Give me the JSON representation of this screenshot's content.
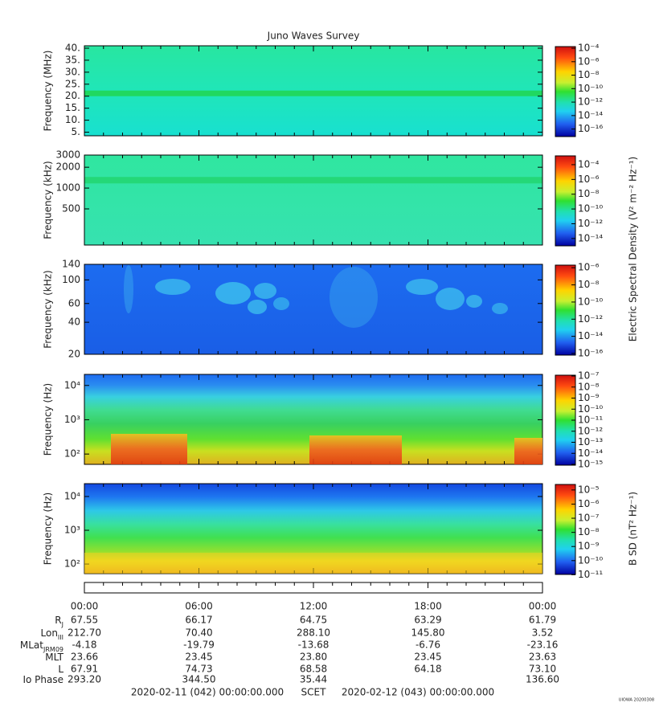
{
  "title": "Juno Waves Survey",
  "chart_data": [
    {
      "type": "spectrogram",
      "ylabel": "Frequency (MHz)",
      "log_y": false,
      "ylim": [
        3.5,
        41
      ],
      "yticks": [
        {
          "value": 5,
          "label": "5."
        },
        {
          "value": 10,
          "label": "10."
        },
        {
          "value": 15,
          "label": "15."
        },
        {
          "value": 20,
          "label": "20."
        },
        {
          "value": 25,
          "label": "25."
        },
        {
          "value": 30,
          "label": "30."
        },
        {
          "value": 35,
          "label": "35."
        },
        {
          "value": 40,
          "label": "40."
        }
      ],
      "clim": [
        1e-17,
        0.00023
      ],
      "cticks": [
        {
          "value": 0.0001,
          "label": "10⁻⁴"
        },
        {
          "value": 1e-06,
          "label": "10⁻⁶"
        },
        {
          "value": 1e-08,
          "label": "10⁻⁸"
        },
        {
          "value": 1e-10,
          "label": "10⁻¹⁰"
        },
        {
          "value": 1e-12,
          "label": "10⁻¹²"
        },
        {
          "value": 1e-14,
          "label": "10⁻¹⁴"
        },
        {
          "value": 1e-16,
          "label": "10⁻¹⁶"
        }
      ]
    },
    {
      "type": "spectrogram",
      "ylabel": "Frequency (kHz)",
      "log_y": true,
      "ylim": [
        150,
        3000
      ],
      "yticks": [
        500,
        1000,
        2000,
        3000
      ],
      "clim": [
        1.3e-15,
        0.002
      ],
      "cticks": [
        {
          "value": 0.0001,
          "label": "10⁻⁴"
        },
        {
          "value": 1e-06,
          "label": "10⁻⁶"
        },
        {
          "value": 1e-08,
          "label": "10⁻⁸"
        },
        {
          "value": 1e-10,
          "label": "10⁻¹⁰"
        },
        {
          "value": 1e-12,
          "label": "10⁻¹²"
        },
        {
          "value": 1e-14,
          "label": "10⁻¹⁴"
        }
      ],
      "colorbar_label": "Electric Spectral Density (V² m⁻² Hz⁻¹)"
    },
    {
      "type": "spectrogram",
      "ylabel": "Frequency (kHz)",
      "log_y": true,
      "ylim": [
        20,
        140
      ],
      "yticks": [
        20,
        40,
        60,
        100,
        140
      ],
      "clim": [
        8e-17,
        2.5e-06
      ],
      "cticks": [
        {
          "value": 1e-06,
          "label": "10⁻⁶"
        },
        {
          "value": 1e-08,
          "label": "10⁻⁸"
        },
        {
          "value": 1e-10,
          "label": "10⁻¹⁰"
        },
        {
          "value": 1e-12,
          "label": "10⁻¹²"
        },
        {
          "value": 1e-14,
          "label": "10⁻¹⁴"
        },
        {
          "value": 1e-16,
          "label": "10⁻¹⁶"
        }
      ]
    },
    {
      "type": "spectrogram",
      "ylabel": "Frequency (Hz)",
      "log_y": true,
      "ylim": [
        50,
        21000
      ],
      "yticks": [
        {
          "value": 100,
          "label": "10²"
        },
        {
          "value": 1000,
          "label": "10³"
        },
        {
          "value": 10000,
          "label": "10⁴"
        }
      ],
      "clim": [
        1e-15,
        1.4e-07
      ],
      "cticks": [
        {
          "value": 1e-07,
          "label": "10⁻⁷"
        },
        {
          "value": 1e-08,
          "label": "10⁻⁸"
        },
        {
          "value": 1e-09,
          "label": "10⁻⁹"
        },
        {
          "value": 1e-10,
          "label": "10⁻¹⁰"
        },
        {
          "value": 1e-11,
          "label": "10⁻¹¹"
        },
        {
          "value": 1e-12,
          "label": "10⁻¹²"
        },
        {
          "value": 1e-13,
          "label": "10⁻¹³"
        },
        {
          "value": 1e-14,
          "label": "10⁻¹⁴"
        },
        {
          "value": 1e-15,
          "label": "10⁻¹⁵"
        }
      ]
    },
    {
      "type": "spectrogram",
      "ylabel": "Frequency (Hz)",
      "log_y": true,
      "ylim": [
        52,
        24000
      ],
      "yticks": [
        {
          "value": 100,
          "label": "10²"
        },
        {
          "value": 1000,
          "label": "10³"
        },
        {
          "value": 10000,
          "label": "10⁴"
        }
      ],
      "clim": [
        1.2e-11,
        2.8e-05
      ],
      "cticks": [
        {
          "value": 1e-05,
          "label": "10⁻⁵"
        },
        {
          "value": 1e-06,
          "label": "10⁻⁶"
        },
        {
          "value": 1e-07,
          "label": "10⁻⁷"
        },
        {
          "value": 1e-08,
          "label": "10⁻⁸"
        },
        {
          "value": 1e-09,
          "label": "10⁻⁹"
        },
        {
          "value": 1e-10,
          "label": "10⁻¹⁰"
        },
        {
          "value": 1e-11,
          "label": "10⁻¹¹"
        }
      ],
      "colorbar_label": "B SD (nT² Hz⁻¹)"
    }
  ],
  "time_ticks": [
    "00:00",
    "06:00",
    "12:00",
    "18:00",
    "00:00"
  ],
  "ephemeris": [
    {
      "label": "R",
      "sub": "J",
      "values": [
        "67.55",
        "66.17",
        "64.75",
        "63.29",
        "61.79"
      ]
    },
    {
      "label": "Lon",
      "sub": "III",
      "values": [
        "212.70",
        "70.40",
        "288.10",
        "145.80",
        "3.52"
      ]
    },
    {
      "label": "MLat",
      "sub": "JRM09",
      "values": [
        "-4.18",
        "-19.79",
        "-13.68",
        "-6.76",
        "-23.16"
      ]
    },
    {
      "label": "MLT",
      "values": [
        "23.66",
        "23.45",
        "23.80",
        "23.45",
        "23.63"
      ]
    },
    {
      "label": "L",
      "values": [
        "67.91",
        "74.73",
        "68.58",
        "64.18",
        "73.10"
      ]
    },
    {
      "label": "Io Phase",
      "values": [
        "293.20",
        "344.50",
        "35.44",
        null,
        "136.60"
      ]
    }
  ],
  "footer": {
    "start": "2020-02-11 (042) 00:00:00.000",
    "scet": "SCET",
    "end": "2020-02-12 (043) 00:00:00.000"
  },
  "stamp": "UIOWA 20200308"
}
